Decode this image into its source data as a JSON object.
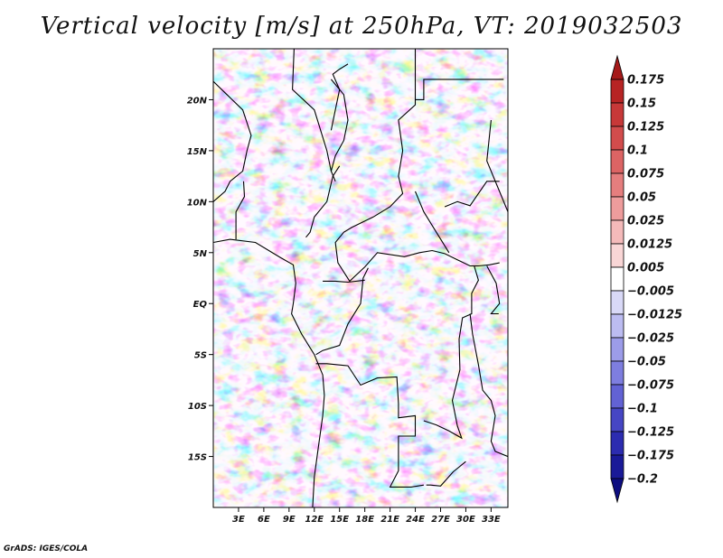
{
  "title": "Vertical velocity [m/s] at 250hPa, VT: 2019032503",
  "credit": "GrADS: IGES/COLA",
  "chart_data": {
    "type": "heatmap",
    "title": "Vertical velocity [m/s] at 250hPa, VT: 2019032503",
    "variable": "Vertical velocity",
    "units": "m/s",
    "level": "250hPa",
    "valid_time": "2019032503",
    "x_range_deg": [
      0,
      35
    ],
    "y_range_deg": [
      -20,
      25
    ],
    "x_ticks": [
      {
        "value": 3,
        "label": "3E"
      },
      {
        "value": 6,
        "label": "6E"
      },
      {
        "value": 9,
        "label": "9E"
      },
      {
        "value": 12,
        "label": "12E"
      },
      {
        "value": 15,
        "label": "15E"
      },
      {
        "value": 18,
        "label": "18E"
      },
      {
        "value": 21,
        "label": "21E"
      },
      {
        "value": 24,
        "label": "24E"
      },
      {
        "value": 27,
        "label": "27E"
      },
      {
        "value": 30,
        "label": "30E"
      },
      {
        "value": 33,
        "label": "33E"
      }
    ],
    "y_ticks": [
      {
        "value": 20,
        "label": "20N"
      },
      {
        "value": 15,
        "label": "15N"
      },
      {
        "value": 10,
        "label": "10N"
      },
      {
        "value": 5,
        "label": "5N"
      },
      {
        "value": 0,
        "label": "EQ"
      },
      {
        "value": -5,
        "label": "5S"
      },
      {
        "value": -10,
        "label": "10S"
      },
      {
        "value": -15,
        "label": "15S"
      }
    ],
    "colorbar": {
      "labels": [
        "0.175",
        "0.15",
        "0.125",
        "0.1",
        "0.075",
        "0.05",
        "0.025",
        "0.0125",
        "0.005",
        "−0.005",
        "−0.0125",
        "−0.025",
        "−0.05",
        "−0.075",
        "−0.1",
        "−0.125",
        "−0.175",
        "−0.2"
      ],
      "colors": [
        "#a51a1a",
        "#b72424",
        "#c73838",
        "#d24c4c",
        "#dc6464",
        "#e57e7e",
        "#ee9c9c",
        "#f4baba",
        "#f9d6d6",
        "#ffffff",
        "#d9d9f7",
        "#bcbcf1",
        "#9c9ce9",
        "#7e7edf",
        "#6262d4",
        "#4646c4",
        "#2c2cb0",
        "#1a1a98",
        "#0d0d80"
      ],
      "extends": "both"
    },
    "notable_features": [
      "Alternating positive (red) and negative (blue) streaks over central Africa",
      "Strong mixed positive patches over the Gulf of Guinea near the equator (2E–10E)",
      "Positive maxima near 16E 1N, 22E 5N and 29E 3N"
    ]
  }
}
